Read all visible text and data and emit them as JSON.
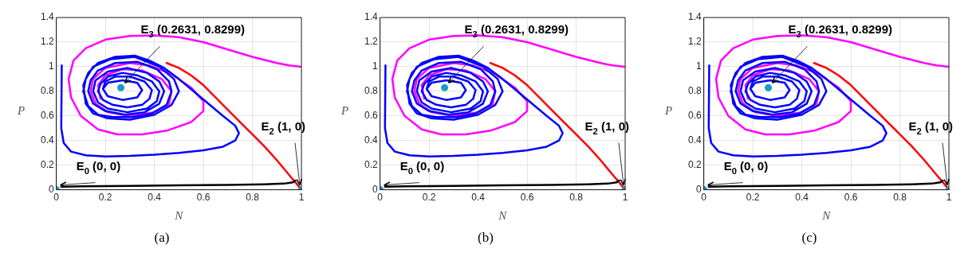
{
  "chart_data": [
    {
      "type": "line",
      "xlabel": "N",
      "ylabel": "P",
      "xlim": [
        0,
        1
      ],
      "ylim": [
        0,
        1.4
      ],
      "xticks": [
        0,
        0.2,
        0.4,
        0.6,
        0.8,
        1
      ],
      "yticks": [
        0,
        0.2,
        0.4,
        0.6,
        0.8,
        1,
        1.2,
        1.4
      ],
      "grid": true,
      "annotations": [
        {
          "text": "E$_{3}$ (0.2631, 0.8299)",
          "x": 0.2631,
          "y": 0.8299
        },
        {
          "text": "E$_{2}$ (1, 0)",
          "x": 1,
          "y": 0
        },
        {
          "text": "E$_{0}$ (0, 0)",
          "x": 0,
          "y": 0
        },
        "(a)"
      ],
      "series": [
        {
          "color": "#ff00ff",
          "x": [
            1.0,
            0.95,
            0.9,
            0.8,
            0.7,
            0.6,
            0.5,
            0.4,
            0.3,
            0.2,
            0.12,
            0.07,
            0.05,
            0.06,
            0.1,
            0.17,
            0.25,
            0.35,
            0.45,
            0.55,
            0.6,
            0.6,
            0.55,
            0.47,
            0.38,
            0.3,
            0.2,
            0.15,
            0.14,
            0.16,
            0.21,
            0.3,
            0.4,
            0.46,
            0.47,
            0.43,
            0.35,
            0.27,
            0.2,
            0.17,
            0.18
          ],
          "values": [
            1.0,
            1.01,
            1.03,
            1.08,
            1.14,
            1.2,
            1.24,
            1.255,
            1.25,
            1.22,
            1.15,
            1.05,
            0.9,
            0.75,
            0.6,
            0.49,
            0.45,
            0.45,
            0.48,
            0.55,
            0.64,
            0.72,
            0.83,
            0.94,
            1.01,
            1.03,
            0.99,
            0.9,
            0.8,
            0.7,
            0.63,
            0.6,
            0.63,
            0.7,
            0.8,
            0.9,
            0.97,
            0.98,
            0.93,
            0.85,
            0.74
          ]
        },
        {
          "color": "#0000ff",
          "x": [
            0.022,
            0.02,
            0.03,
            0.06,
            0.12,
            0.2,
            0.3,
            0.4,
            0.5,
            0.6,
            0.68,
            0.73,
            0.745,
            0.73,
            0.68,
            0.62,
            0.56,
            0.5,
            0.44,
            0.38,
            0.32,
            0.24,
            0.17,
            0.13,
            0.11,
            0.12,
            0.15,
            0.21,
            0.3,
            0.4,
            0.47,
            0.5,
            0.48,
            0.42,
            0.32,
            0.22,
            0.15,
            0.12,
            0.11
          ],
          "values": [
            1.01,
            0.5,
            0.38,
            0.31,
            0.28,
            0.27,
            0.275,
            0.285,
            0.3,
            0.32,
            0.35,
            0.4,
            0.46,
            0.52,
            0.6,
            0.7,
            0.8,
            0.9,
            0.99,
            1.05,
            1.09,
            1.08,
            1.03,
            0.95,
            0.85,
            0.7,
            0.62,
            0.58,
            0.57,
            0.61,
            0.69,
            0.8,
            0.9,
            1.0,
            1.08,
            1.06,
            1.0,
            0.9,
            0.8
          ]
        },
        {
          "color": "#0000ff",
          "x": [
            0.11,
            0.13,
            0.17,
            0.23,
            0.31,
            0.39,
            0.45,
            0.47,
            0.46,
            0.41,
            0.33,
            0.24,
            0.17,
            0.14,
            0.13,
            0.15,
            0.2,
            0.28,
            0.36,
            0.42,
            0.44,
            0.42,
            0.37,
            0.29,
            0.21,
            0.16,
            0.15,
            0.17,
            0.21,
            0.29,
            0.37,
            0.41,
            0.42,
            0.39,
            0.33,
            0.27,
            0.21,
            0.18,
            0.17,
            0.19,
            0.23,
            0.29,
            0.35,
            0.38,
            0.39,
            0.36,
            0.3,
            0.24,
            0.2,
            0.19,
            0.21,
            0.27,
            0.33,
            0.35,
            0.33,
            0.27,
            0.21,
            0.19
          ],
          "values": [
            0.8,
            0.68,
            0.61,
            0.59,
            0.59,
            0.62,
            0.69,
            0.8,
            0.88,
            0.98,
            1.04,
            1.03,
            0.97,
            0.89,
            0.8,
            0.7,
            0.64,
            0.61,
            0.63,
            0.7,
            0.8,
            0.88,
            0.95,
            0.99,
            0.96,
            0.89,
            0.8,
            0.71,
            0.66,
            0.63,
            0.66,
            0.72,
            0.8,
            0.88,
            0.93,
            0.95,
            0.92,
            0.86,
            0.8,
            0.73,
            0.69,
            0.67,
            0.69,
            0.74,
            0.81,
            0.88,
            0.92,
            0.92,
            0.88,
            0.82,
            0.76,
            0.73,
            0.75,
            0.81,
            0.87,
            0.89,
            0.87,
            0.82
          ]
        },
        {
          "color": "#ff0000",
          "x": [
            1.0,
            0.98,
            0.95,
            0.9,
            0.85,
            0.8,
            0.75,
            0.7,
            0.65,
            0.6,
            0.55,
            0.5,
            0.45
          ],
          "values": [
            0.0,
            0.05,
            0.12,
            0.24,
            0.35,
            0.45,
            0.55,
            0.65,
            0.75,
            0.85,
            0.93,
            0.99,
            1.03
          ]
        },
        {
          "color": "#000000",
          "x": [
            0.02,
            0.1,
            0.3,
            0.5,
            0.7,
            0.85,
            0.93,
            0.965,
            0.975
          ],
          "values": [
            0.025,
            0.028,
            0.032,
            0.036,
            0.04,
            0.045,
            0.05,
            0.06,
            0.075
          ]
        },
        {
          "type": "scatter",
          "color": "#1a9bc8",
          "x": [
            0,
            1,
            0.2631
          ],
          "values": [
            0,
            0,
            0.8299
          ]
        }
      ]
    },
    {
      "type": "line",
      "xlabel": "N",
      "ylabel": "P",
      "xlim": [
        0,
        1
      ],
      "ylim": [
        0,
        1.4
      ],
      "xticks": [
        0,
        0.2,
        0.4,
        0.6,
        0.8,
        1
      ],
      "yticks": [
        0,
        0.2,
        0.4,
        0.6,
        0.8,
        1,
        1.2,
        1.4
      ],
      "grid": true,
      "annotations": [
        {
          "text": "E$_{3}$ (0.2631, 0.8299)",
          "x": 0.2631,
          "y": 0.8299
        },
        {
          "text": "E$_{2}$ (1, 0)",
          "x": 1,
          "y": 0
        },
        {
          "text": "E$_{0}$ (0, 0)",
          "x": 0,
          "y": 0
        },
        "(b)"
      ],
      "series": [
        {
          "color": "#ff00ff",
          "x": [
            1.0,
            0.95,
            0.9,
            0.8,
            0.7,
            0.6,
            0.5,
            0.4,
            0.3,
            0.2,
            0.12,
            0.07,
            0.05,
            0.06,
            0.1,
            0.17,
            0.25,
            0.35,
            0.45,
            0.55,
            0.6,
            0.6,
            0.55,
            0.47,
            0.38,
            0.3,
            0.2,
            0.15,
            0.14,
            0.16,
            0.21,
            0.3,
            0.4,
            0.46,
            0.47,
            0.43,
            0.35,
            0.27,
            0.2,
            0.17,
            0.18
          ],
          "values": [
            1.0,
            1.01,
            1.03,
            1.08,
            1.14,
            1.2,
            1.24,
            1.255,
            1.25,
            1.22,
            1.15,
            1.05,
            0.9,
            0.75,
            0.6,
            0.49,
            0.45,
            0.45,
            0.48,
            0.55,
            0.64,
            0.72,
            0.83,
            0.94,
            1.01,
            1.03,
            0.99,
            0.9,
            0.8,
            0.7,
            0.63,
            0.6,
            0.63,
            0.7,
            0.8,
            0.9,
            0.97,
            0.98,
            0.93,
            0.85,
            0.74
          ]
        },
        {
          "color": "#0000ff",
          "x": [
            0.022,
            0.02,
            0.03,
            0.06,
            0.12,
            0.2,
            0.3,
            0.4,
            0.5,
            0.6,
            0.68,
            0.73,
            0.745,
            0.73,
            0.68,
            0.62,
            0.56,
            0.5,
            0.44,
            0.38,
            0.32,
            0.24,
            0.17,
            0.13,
            0.11,
            0.12,
            0.15,
            0.21,
            0.3,
            0.4,
            0.47,
            0.5,
            0.48,
            0.42,
            0.32,
            0.22,
            0.15,
            0.12,
            0.11
          ],
          "values": [
            1.01,
            0.5,
            0.38,
            0.31,
            0.28,
            0.27,
            0.275,
            0.285,
            0.3,
            0.32,
            0.35,
            0.4,
            0.46,
            0.52,
            0.6,
            0.7,
            0.8,
            0.9,
            0.99,
            1.05,
            1.09,
            1.08,
            1.03,
            0.95,
            0.85,
            0.7,
            0.62,
            0.58,
            0.57,
            0.61,
            0.69,
            0.8,
            0.9,
            1.0,
            1.08,
            1.06,
            1.0,
            0.9,
            0.8
          ]
        },
        {
          "color": "#0000ff",
          "x": [
            0.11,
            0.13,
            0.17,
            0.23,
            0.31,
            0.39,
            0.45,
            0.47,
            0.46,
            0.41,
            0.33,
            0.24,
            0.17,
            0.14,
            0.13,
            0.15,
            0.2,
            0.28,
            0.36,
            0.42,
            0.44,
            0.42,
            0.37,
            0.29,
            0.21,
            0.16,
            0.15,
            0.17,
            0.21,
            0.29,
            0.37,
            0.41,
            0.42,
            0.39,
            0.33,
            0.27,
            0.21,
            0.18,
            0.17,
            0.19,
            0.23,
            0.29,
            0.35,
            0.38,
            0.39,
            0.36,
            0.3,
            0.24,
            0.2,
            0.19,
            0.21,
            0.27,
            0.33,
            0.35,
            0.33,
            0.27,
            0.21,
            0.19
          ],
          "values": [
            0.8,
            0.68,
            0.61,
            0.59,
            0.59,
            0.62,
            0.69,
            0.8,
            0.88,
            0.98,
            1.04,
            1.03,
            0.97,
            0.89,
            0.8,
            0.7,
            0.64,
            0.61,
            0.63,
            0.7,
            0.8,
            0.88,
            0.95,
            0.99,
            0.96,
            0.89,
            0.8,
            0.71,
            0.66,
            0.63,
            0.66,
            0.72,
            0.8,
            0.88,
            0.93,
            0.95,
            0.92,
            0.86,
            0.8,
            0.73,
            0.69,
            0.67,
            0.69,
            0.74,
            0.81,
            0.88,
            0.92,
            0.92,
            0.88,
            0.82,
            0.76,
            0.73,
            0.75,
            0.81,
            0.87,
            0.89,
            0.87,
            0.82
          ]
        },
        {
          "color": "#ff0000",
          "x": [
            1.0,
            0.98,
            0.95,
            0.9,
            0.85,
            0.8,
            0.75,
            0.7,
            0.65,
            0.6,
            0.55,
            0.5,
            0.45
          ],
          "values": [
            0.0,
            0.05,
            0.12,
            0.24,
            0.35,
            0.45,
            0.55,
            0.65,
            0.75,
            0.85,
            0.93,
            0.99,
            1.03
          ]
        },
        {
          "color": "#000000",
          "x": [
            0.02,
            0.1,
            0.3,
            0.5,
            0.7,
            0.85,
            0.93,
            0.965,
            0.975
          ],
          "values": [
            0.025,
            0.028,
            0.032,
            0.036,
            0.04,
            0.045,
            0.05,
            0.06,
            0.075
          ]
        },
        {
          "type": "scatter",
          "color": "#1a9bc8",
          "x": [
            0,
            1,
            0.2631
          ],
          "values": [
            0,
            0,
            0.8299
          ]
        }
      ]
    },
    {
      "type": "line",
      "xlabel": "N",
      "ylabel": "P",
      "xlim": [
        0,
        1
      ],
      "ylim": [
        0,
        1.4
      ],
      "xticks": [
        0,
        0.2,
        0.4,
        0.6,
        0.8,
        1
      ],
      "yticks": [
        0,
        0.2,
        0.4,
        0.6,
        0.8,
        1,
        1.2,
        1.4
      ],
      "grid": true,
      "annotations": [
        {
          "text": "E$_{3}$ (0.2631, 0.8299)",
          "x": 0.2631,
          "y": 0.8299
        },
        {
          "text": "E$_{2}$ (1, 0)",
          "x": 1,
          "y": 0
        },
        {
          "text": "E$_{0}$ (0, 0)",
          "x": 0,
          "y": 0
        },
        "(c)"
      ],
      "series": [
        {
          "color": "#ff00ff",
          "x": [
            1.0,
            0.95,
            0.9,
            0.8,
            0.7,
            0.6,
            0.5,
            0.4,
            0.3,
            0.2,
            0.12,
            0.07,
            0.05,
            0.06,
            0.1,
            0.17,
            0.25,
            0.35,
            0.45,
            0.55,
            0.6,
            0.6,
            0.55,
            0.47,
            0.38,
            0.3,
            0.2,
            0.15,
            0.14,
            0.16,
            0.21,
            0.3,
            0.4,
            0.46,
            0.47,
            0.43,
            0.35,
            0.27,
            0.2,
            0.17,
            0.18
          ],
          "values": [
            1.0,
            1.01,
            1.03,
            1.08,
            1.14,
            1.2,
            1.24,
            1.255,
            1.25,
            1.22,
            1.15,
            1.05,
            0.9,
            0.75,
            0.6,
            0.49,
            0.45,
            0.45,
            0.48,
            0.55,
            0.64,
            0.72,
            0.83,
            0.94,
            1.01,
            1.03,
            0.99,
            0.9,
            0.8,
            0.7,
            0.63,
            0.6,
            0.63,
            0.7,
            0.8,
            0.9,
            0.97,
            0.98,
            0.93,
            0.85,
            0.74
          ]
        },
        {
          "color": "#0000ff",
          "x": [
            0.022,
            0.02,
            0.03,
            0.06,
            0.12,
            0.2,
            0.3,
            0.4,
            0.5,
            0.6,
            0.68,
            0.73,
            0.745,
            0.73,
            0.68,
            0.62,
            0.56,
            0.5,
            0.44,
            0.38,
            0.32,
            0.24,
            0.17,
            0.13,
            0.11,
            0.12,
            0.15,
            0.21,
            0.3,
            0.4,
            0.47,
            0.5,
            0.48,
            0.42,
            0.32,
            0.22,
            0.15,
            0.12,
            0.11
          ],
          "values": [
            1.01,
            0.5,
            0.38,
            0.31,
            0.28,
            0.27,
            0.275,
            0.285,
            0.3,
            0.32,
            0.35,
            0.4,
            0.46,
            0.52,
            0.6,
            0.7,
            0.8,
            0.9,
            0.99,
            1.05,
            1.09,
            1.08,
            1.03,
            0.95,
            0.85,
            0.7,
            0.62,
            0.58,
            0.57,
            0.61,
            0.69,
            0.8,
            0.9,
            1.0,
            1.08,
            1.06,
            1.0,
            0.9,
            0.8
          ]
        },
        {
          "color": "#0000ff",
          "x": [
            0.11,
            0.13,
            0.17,
            0.23,
            0.31,
            0.39,
            0.45,
            0.47,
            0.46,
            0.41,
            0.33,
            0.24,
            0.17,
            0.14,
            0.13,
            0.15,
            0.2,
            0.28,
            0.36,
            0.42,
            0.44,
            0.42,
            0.37,
            0.29,
            0.21,
            0.16,
            0.15,
            0.17,
            0.21,
            0.29,
            0.37,
            0.41,
            0.42,
            0.39,
            0.33,
            0.27,
            0.21,
            0.18,
            0.17,
            0.19,
            0.23,
            0.29,
            0.35,
            0.38,
            0.39,
            0.36,
            0.3,
            0.24,
            0.2,
            0.19,
            0.21,
            0.27,
            0.33,
            0.35,
            0.33,
            0.27,
            0.21,
            0.19
          ],
          "values": [
            0.8,
            0.68,
            0.61,
            0.59,
            0.59,
            0.62,
            0.69,
            0.8,
            0.88,
            0.98,
            1.04,
            1.03,
            0.97,
            0.89,
            0.8,
            0.7,
            0.64,
            0.61,
            0.63,
            0.7,
            0.8,
            0.88,
            0.95,
            0.99,
            0.96,
            0.89,
            0.8,
            0.71,
            0.66,
            0.63,
            0.66,
            0.72,
            0.8,
            0.88,
            0.93,
            0.95,
            0.92,
            0.86,
            0.8,
            0.73,
            0.69,
            0.67,
            0.69,
            0.74,
            0.81,
            0.88,
            0.92,
            0.92,
            0.88,
            0.82,
            0.76,
            0.73,
            0.75,
            0.81,
            0.87,
            0.89,
            0.87,
            0.82
          ]
        },
        {
          "color": "#ff0000",
          "x": [
            1.0,
            0.98,
            0.95,
            0.9,
            0.85,
            0.8,
            0.75,
            0.7,
            0.65,
            0.6,
            0.55,
            0.5,
            0.45
          ],
          "values": [
            0.0,
            0.05,
            0.12,
            0.24,
            0.35,
            0.45,
            0.55,
            0.65,
            0.75,
            0.85,
            0.93,
            0.99,
            1.03
          ]
        },
        {
          "color": "#000000",
          "x": [
            0.02,
            0.1,
            0.3,
            0.5,
            0.7,
            0.85,
            0.93,
            0.965,
            0.975
          ],
          "values": [
            0.025,
            0.028,
            0.032,
            0.036,
            0.04,
            0.045,
            0.05,
            0.06,
            0.075
          ]
        },
        {
          "type": "scatter",
          "color": "#1a9bc8",
          "x": [
            0,
            1,
            0.2631
          ],
          "values": [
            0,
            0,
            0.8299
          ]
        }
      ]
    }
  ]
}
